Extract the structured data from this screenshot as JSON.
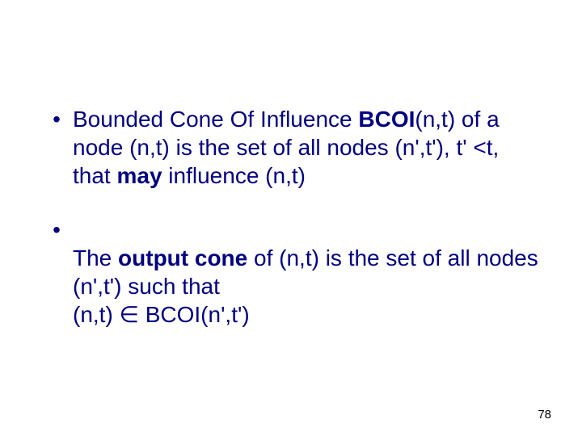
{
  "slide": {
    "background_color": "#ffffff",
    "text_color": "#000080",
    "font_family": "Comic Sans MS",
    "body_fontsize_pt": 28,
    "pagenum_fontsize_pt": 15,
    "bullets": [
      {
        "runs": [
          {
            "t": "Bounded Cone Of Influence ",
            "bold": false
          },
          {
            "t": "BCOI",
            "bold": true
          },
          {
            "t": "(n,t) of a node (n,t) is the set of all nodes (n',t'), t' <t, that ",
            "bold": false
          },
          {
            "t": "may",
            "bold": true
          },
          {
            "t": " influence (n,t)",
            "bold": false
          }
        ]
      },
      {
        "runs": [
          {
            "t": "The ",
            "bold": false
          },
          {
            "t": "output cone",
            "bold": true
          },
          {
            "t": " of (n,t) is the set of all nodes (n',t') such that\n(n,t) ∈ BCOI(n',t')",
            "bold": false
          }
        ]
      }
    ],
    "page_number": "78"
  }
}
